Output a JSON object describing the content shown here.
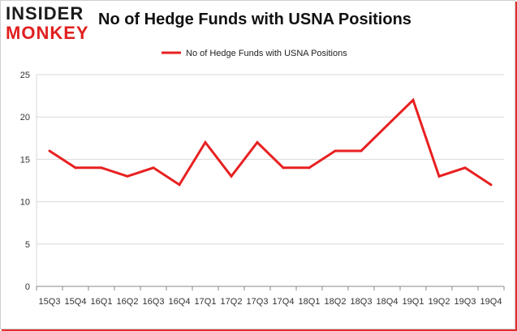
{
  "logo": {
    "line1": "INSIDER",
    "line2": "MONKEY"
  },
  "title": "No of Hedge Funds with USNA Positions",
  "colors": {
    "series": "#e82020",
    "grid": "#d9d9d9",
    "axis": "#888888"
  },
  "chart_data": {
    "type": "line",
    "title": "No of Hedge Funds with USNA Positions",
    "xlabel": "",
    "ylabel": "",
    "ylim": [
      0,
      25
    ],
    "yticks": [
      0,
      5,
      10,
      15,
      20,
      25
    ],
    "grid": true,
    "legend_placement": "top-center",
    "categories": [
      "15Q3",
      "15Q4",
      "16Q1",
      "16Q2",
      "16Q3",
      "16Q4",
      "17Q1",
      "17Q2",
      "17Q3",
      "17Q4",
      "18Q1",
      "18Q2",
      "18Q3",
      "18Q4",
      "19Q1",
      "19Q2",
      "19Q3",
      "19Q4"
    ],
    "series": [
      {
        "name": "No of Hedge Funds with USNA Positions",
        "values": [
          16,
          14,
          14,
          13,
          14,
          12,
          17,
          13,
          17,
          14,
          14,
          16,
          16,
          19,
          22,
          13,
          14,
          12
        ]
      }
    ]
  }
}
